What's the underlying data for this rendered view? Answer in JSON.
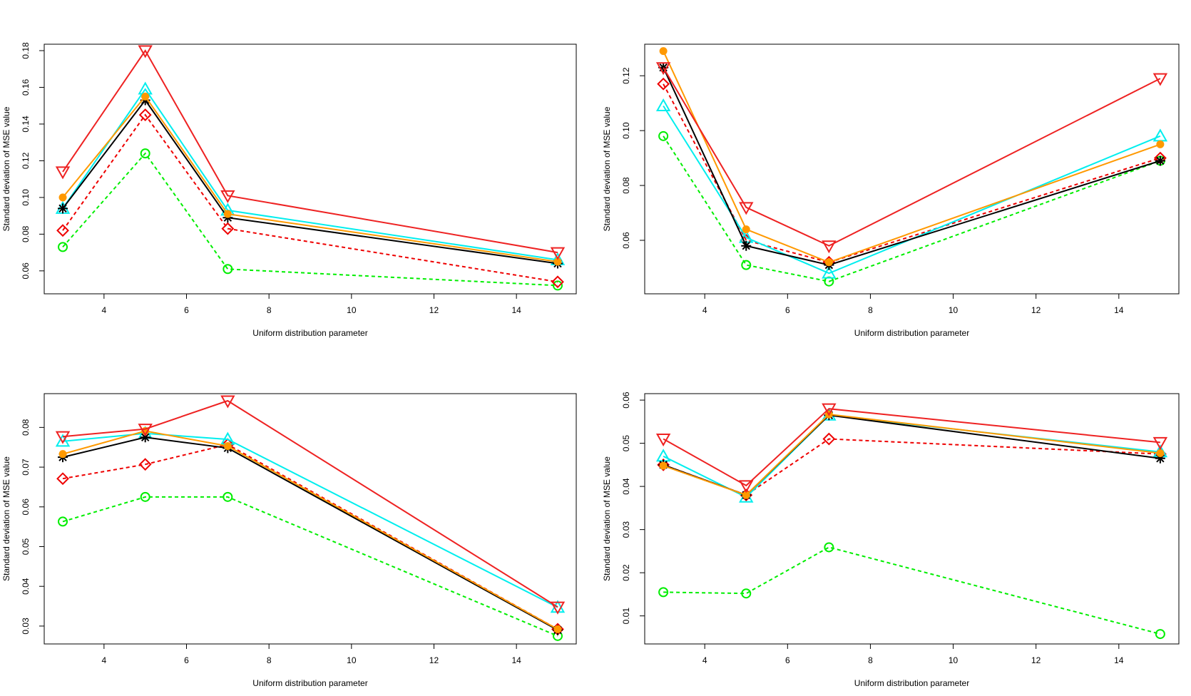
{
  "chart_data": [
    {
      "type": "line",
      "title": "",
      "xlabel": "Uniform distribution parameter",
      "ylabel": "Standard deviation of MSE value",
      "x": [
        3,
        5,
        7,
        15
      ],
      "xlim": [
        2.55,
        15.45
      ],
      "ylim": [
        0.0475,
        0.1835
      ],
      "xticks": [
        4,
        6,
        8,
        10,
        12,
        14
      ],
      "yticks": [
        0.06,
        0.08,
        0.1,
        0.12,
        0.14,
        0.16,
        0.18
      ],
      "ytick_labels": [
        "0.06",
        "0.08",
        "0.10",
        "0.12",
        "0.14",
        "0.16",
        "0.18"
      ],
      "series": [
        {
          "name": "green-circle",
          "color": "#00ee00",
          "dash": "dotted",
          "marker": "circle-open",
          "values": [
            0.073,
            0.124,
            0.061,
            0.052
          ]
        },
        {
          "name": "red-diamond",
          "color": "#ee0000",
          "dash": "dotted",
          "marker": "diamond-open",
          "values": [
            0.082,
            0.145,
            0.083,
            0.054
          ]
        },
        {
          "name": "cyan-triangle",
          "color": "#00eeee",
          "dash": "solid",
          "marker": "triangle-up-open",
          "values": [
            0.094,
            0.159,
            0.093,
            0.066
          ]
        },
        {
          "name": "black-asterisk",
          "color": "#000000",
          "dash": "solid",
          "marker": "asterisk",
          "values": [
            0.094,
            0.153,
            0.089,
            0.064
          ]
        },
        {
          "name": "orange-dot",
          "color": "#ff9900",
          "dash": "solid",
          "marker": "dot",
          "values": [
            0.1,
            0.155,
            0.091,
            0.065
          ]
        },
        {
          "name": "red-triangle-down",
          "color": "#ee2222",
          "dash": "solid",
          "marker": "triangle-down-open",
          "values": [
            0.114,
            0.18,
            0.101,
            0.07
          ]
        }
      ]
    },
    {
      "type": "line",
      "title": "",
      "xlabel": "Uniform distribution parameter",
      "ylabel": "Standard deviation of MSE value",
      "x": [
        3,
        5,
        7,
        15
      ],
      "xlim": [
        2.55,
        15.45
      ],
      "ylim": [
        0.0405,
        0.1315
      ],
      "xticks": [
        4,
        6,
        8,
        10,
        12,
        14
      ],
      "yticks": [
        0.06,
        0.08,
        0.1,
        0.12
      ],
      "ytick_labels": [
        "0.06",
        "0.08",
        "0.10",
        "0.12"
      ],
      "series": [
        {
          "name": "green-circle",
          "color": "#00ee00",
          "dash": "dotted",
          "marker": "circle-open",
          "values": [
            0.098,
            0.051,
            0.045,
            0.089
          ]
        },
        {
          "name": "red-diamond",
          "color": "#ee0000",
          "dash": "dotted",
          "marker": "diamond-open",
          "values": [
            0.117,
            0.06,
            0.052,
            0.09
          ]
        },
        {
          "name": "cyan-triangle",
          "color": "#00eeee",
          "dash": "solid",
          "marker": "triangle-up-open",
          "values": [
            0.109,
            0.061,
            0.048,
            0.098
          ]
        },
        {
          "name": "black-asterisk",
          "color": "#000000",
          "dash": "solid",
          "marker": "asterisk",
          "values": [
            0.123,
            0.058,
            0.051,
            0.089
          ]
        },
        {
          "name": "orange-dot",
          "color": "#ff9900",
          "dash": "solid",
          "marker": "dot",
          "values": [
            0.129,
            0.064,
            0.052,
            0.095
          ]
        },
        {
          "name": "red-triangle-down",
          "color": "#ee2222",
          "dash": "solid",
          "marker": "triangle-down-open",
          "values": [
            0.123,
            0.072,
            0.058,
            0.119
          ]
        }
      ]
    },
    {
      "type": "line",
      "title": "",
      "xlabel": "Uniform distribution parameter",
      "ylabel": "Standard deviation of MSE value",
      "x": [
        3,
        5,
        7,
        15
      ],
      "xlim": [
        2.55,
        15.45
      ],
      "ylim": [
        0.0255,
        0.0885
      ],
      "xticks": [
        4,
        6,
        8,
        10,
        12,
        14
      ],
      "yticks": [
        0.03,
        0.04,
        0.05,
        0.06,
        0.07,
        0.08
      ],
      "ytick_labels": [
        "0.03",
        "0.04",
        "0.05",
        "0.06",
        "0.07",
        "0.08"
      ],
      "series": [
        {
          "name": "green-circle",
          "color": "#00ee00",
          "dash": "dotted",
          "marker": "circle-open",
          "values": [
            0.0563,
            0.0625,
            0.0625,
            0.0275
          ]
        },
        {
          "name": "red-diamond",
          "color": "#ee0000",
          "dash": "dotted",
          "marker": "diamond-open",
          "values": [
            0.0671,
            0.0707,
            0.0757,
            0.0292
          ]
        },
        {
          "name": "cyan-triangle",
          "color": "#00eeee",
          "dash": "solid",
          "marker": "triangle-up-open",
          "values": [
            0.0765,
            0.0785,
            0.077,
            0.0347
          ]
        },
        {
          "name": "black-asterisk",
          "color": "#000000",
          "dash": "solid",
          "marker": "asterisk",
          "values": [
            0.0725,
            0.0775,
            0.0748,
            0.029
          ]
        },
        {
          "name": "orange-dot",
          "color": "#ff9900",
          "dash": "solid",
          "marker": "dot",
          "values": [
            0.0733,
            0.0791,
            0.0753,
            0.0292
          ]
        },
        {
          "name": "red-triangle-down",
          "color": "#ee2222",
          "dash": "solid",
          "marker": "triangle-down-open",
          "values": [
            0.0777,
            0.0796,
            0.0867,
            0.0348
          ]
        }
      ]
    },
    {
      "type": "line",
      "title": "",
      "xlabel": "Uniform distribution parameter",
      "ylabel": "Standard deviation of MSE value",
      "x": [
        3,
        5,
        7,
        15
      ],
      "xlim": [
        2.55,
        15.45
      ],
      "ylim": [
        0.0035,
        0.0615
      ],
      "xticks": [
        4,
        6,
        8,
        10,
        12,
        14
      ],
      "yticks": [
        0.01,
        0.02,
        0.03,
        0.04,
        0.05,
        0.06
      ],
      "ytick_labels": [
        "0.01",
        "0.02",
        "0.03",
        "0.04",
        "0.05",
        "0.06"
      ],
      "series": [
        {
          "name": "green-circle",
          "color": "#00ee00",
          "dash": "dotted",
          "marker": "circle-open",
          "values": [
            0.0155,
            0.0152,
            0.0259,
            0.0058
          ]
        },
        {
          "name": "red-diamond",
          "color": "#ee0000",
          "dash": "dotted",
          "marker": "diamond-open",
          "values": [
            0.045,
            0.038,
            0.051,
            0.0475
          ]
        },
        {
          "name": "cyan-triangle",
          "color": "#00eeee",
          "dash": "solid",
          "marker": "triangle-up-open",
          "values": [
            0.047,
            0.0375,
            0.0565,
            0.048
          ]
        },
        {
          "name": "black-asterisk",
          "color": "#000000",
          "dash": "solid",
          "marker": "asterisk",
          "values": [
            0.045,
            0.038,
            0.0565,
            0.0465
          ]
        },
        {
          "name": "orange-dot",
          "color": "#ff9900",
          "dash": "solid",
          "marker": "dot",
          "values": [
            0.0448,
            0.038,
            0.0567,
            0.0477
          ]
        },
        {
          "name": "red-triangle-down",
          "color": "#ee2222",
          "dash": "solid",
          "marker": "triangle-down-open",
          "values": [
            0.051,
            0.0402,
            0.058,
            0.0502
          ]
        }
      ]
    }
  ]
}
